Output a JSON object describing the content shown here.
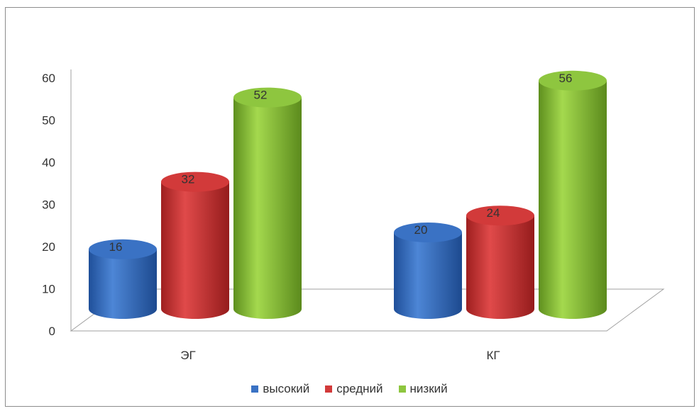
{
  "chart_data": {
    "type": "bar",
    "categories": [
      "ЭГ",
      "КГ"
    ],
    "series": [
      {
        "name": "высокий",
        "values": [
          16,
          20
        ],
        "color": "#3a72c4"
      },
      {
        "name": "средний",
        "values": [
          32,
          24
        ],
        "color": "#d23a3a"
      },
      {
        "name": "низкий",
        "values": [
          52,
          56
        ],
        "color": "#8ec63f"
      }
    ],
    "ylim": [
      0,
      60
    ],
    "yticks": [
      "0",
      "10",
      "20",
      "30",
      "40",
      "50",
      "60"
    ],
    "legend": "bottom",
    "style": "3d-cylinder",
    "grid": false
  }
}
